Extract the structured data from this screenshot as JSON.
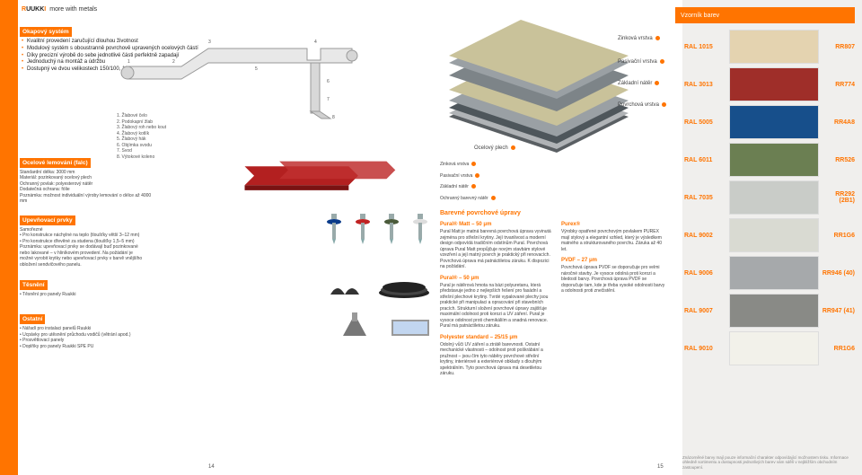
{
  "brand": {
    "name": "RUUKKI",
    "slogan": "more with metals"
  },
  "left": {
    "okapovy": {
      "title": "Okapový systém",
      "bullets": [
        "Kvalitní provedení zaručující dlouhou životnost",
        "Modulový systém s oboustranně povrchově upravených ocelových částí",
        "Díky precizní výrobě do sebe jednotlivé části perfektně zapadají",
        "Jednoduchý na montáž a údržbu",
        "Dostupný ve dvou velikostech 150/100, 125/87"
      ],
      "legend": [
        "1. Žlabové čelo",
        "2. Podokapní žlab",
        "3. Žlabový roh nebo kout",
        "4. Žlabový kotlík",
        "5. Žlabový hák",
        "6. Objímka svodu",
        "7. Svod",
        "8. Výtokové koleno"
      ]
    },
    "falc": {
      "title": "Ocelové lemování (falc)",
      "lines": [
        "Standardní délka: 3000 mm",
        "Materiál: pozinkovaný ocelový plech",
        "Ochranný povlak: polyesterový nátěr",
        "Dodatečná ochrana: fólie",
        "Poznámka: možnost individuální výroby lemování o délce až 4000 mm"
      ]
    },
    "upev": {
      "title": "Upevňovací prvky",
      "lines": [
        "Samořezné",
        "• Pro konstrukce náchylné na teplo (tloušťky větší 3–12 mm)",
        "• Pro konstrukce dřevěné za studena (tloušťky 1,5–5 mm)",
        "Poznámka: upevňovací prvky se dodávají buď pozinkované nebo lakované – v hliníkovém provedení. Na požádání je možné vyrobit krytky nebo upevňovací prvky v barvě vnějšího obložení sendvičového panelu."
      ]
    },
    "tesneni": {
      "title": "Těsnění",
      "lines": [
        "• Těsnění pro panely Ruukki"
      ]
    },
    "ostatni": {
      "title": "Ostatní",
      "lines": [
        "• Nářadí pro instalaci panelů Ruukki",
        "• Ucpávky pro utěsnění průchodu vodičů (větrání apod.)",
        "• Prosvětlovací panely",
        "• Doplňky pro panely Ruukki SPE PU"
      ]
    },
    "page": "14"
  },
  "right": {
    "swatch_title": "Vzorník barev",
    "layers": [
      "Zinková vrstva",
      "Pasivační vrstva",
      "Základní nátěr",
      "Povrchová vrstva",
      "Ocelový plech"
    ],
    "layers2": [
      "Zinková vrstva",
      "Pasivační vrstva",
      "Základní nátěr",
      "Ochranný barevný nátěr"
    ],
    "finishes_title": "Barevné povrchové úpravy",
    "matt": {
      "title": "Pural® Matt – 50 μm",
      "body": "Pural Matt je matná barevná povrchová úprava vyvinutá zejména pro střešní krytiny. Její trvanlivost a moderní design odpovídá tradičním odstínům Pural. Povrchová úprava Pural Matt propůjčuje novým stavbám stylové vzezření a její matný povrch je praktický při renovacích. Povrchová úprava má patnáctiletou záruku. K dispozici na požádání."
    },
    "pural": {
      "title": "Pural® – 50 μm",
      "body": "Pural je nátěrová hmota na bázi polyuretanu, která představuje jedno z nejlepších řešení pro fasádní a střešní plechové krytiny. Tvrdé vypalované plechy jsou praktické při manipulaci a opracování při stavebních pracích. Strukturní složení povrchové úpravy zajišťuje maximální odolnost proti korozi a UV záření. Pural je vysoce odolnost proti chemikáliím a snadná renovace. Pural má patnáctiletou záruku."
    },
    "poly": {
      "title": "Polyester standard – 25/15 μm",
      "body": "Odolný vůči UV záření a ztrátě barevnosti. Ostatní mechanické vlastnosti – odolnost proti poškrábání a pružnost – jsou čím tyto náběry povrchové střešní krytiny, interiérové a exteriérové obklady s dlouhým spektrálním. Tyto povrchová úprava má desetiletou záruku."
    },
    "purex": {
      "title": "Purex®",
      "body": "Výrobky opatřené povrchovým povlakem PUREX mají stylový a elegantní vzhled, který je výsledkem matného a strukturovaného povrchu. Záruka až 40 let."
    },
    "pvdf": {
      "title": "PVDF – 27 μm",
      "body": "Povrchová úprava PVDF se doporučuje pro velmi náročné stavby. Je vysoce odolná proti korozi a bledostí barvy. Povrchová úprava PVDF se doporučuje tam, kde je třeba vysoké odolnosti barvy a odolnosti proti znečistění."
    },
    "swatches": [
      {
        "ral": "RAL 1015",
        "hex": "#e4d3b0",
        "code": "RR807"
      },
      {
        "ral": "RAL 3013",
        "hex": "#9f2e29",
        "code": "RR774"
      },
      {
        "ral": "RAL 5005",
        "hex": "#174f8b",
        "code": "RR4A8"
      },
      {
        "ral": "RAL 6011",
        "hex": "#6b7f52",
        "code": "RR526"
      },
      {
        "ral": "RAL 7035",
        "hex": "#c9ccc8",
        "code": "RR292 (2B1)"
      },
      {
        "ral": "RAL 9002",
        "hex": "#d9dad2",
        "code": "RR1G6"
      },
      {
        "ral": "RAL 9006",
        "hex": "#a6a9ab",
        "code": "RR946 (40)"
      },
      {
        "ral": "RAL 9007",
        "hex": "#898a86",
        "code": "RR947 (41)"
      },
      {
        "ral": "RAL 9010",
        "hex": "#f2f1ea",
        "code": "RR1G6"
      }
    ],
    "footnote": "Znázorněné barvy mají pouze informační charakter odpovídající možnostem tisku. Informace ohledně sortimentu a dostupnosti jednotlivých barev vám sdělí v nejbližším obchodním zastoupení.",
    "page": "15"
  }
}
